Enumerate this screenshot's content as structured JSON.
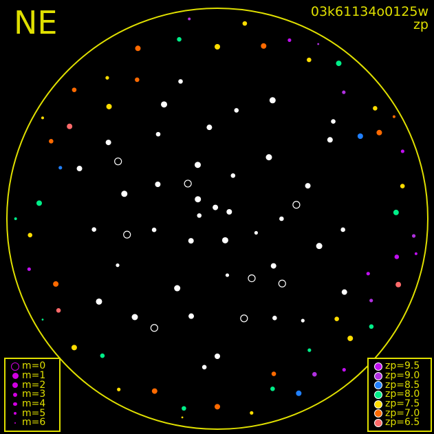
{
  "plot": {
    "direction_label": "NE",
    "frame_id": "03k61134o0125w",
    "color_key": "zp",
    "horizon_color": "#e0e000",
    "no_zp_color": "#ffffff"
  },
  "legend_magnitude": {
    "items": [
      {
        "label": "m=0",
        "m": 0
      },
      {
        "label": "m=1",
        "m": 1
      },
      {
        "label": "m=2",
        "m": 2
      },
      {
        "label": "m=3",
        "m": 3
      },
      {
        "label": "m=4",
        "m": 4
      },
      {
        "label": "m=5",
        "m": 5
      },
      {
        "label": "m=6",
        "m": 6
      }
    ]
  },
  "legend_zp": {
    "items": [
      {
        "label": "zp=9.5",
        "zp": 9.5,
        "color": "#c010f0"
      },
      {
        "label": "zp=9.0",
        "zp": 9.0,
        "color": "#b030e0"
      },
      {
        "label": "zp=8.5",
        "zp": 8.5,
        "color": "#2080ff"
      },
      {
        "label": "zp=8.0",
        "zp": 8.0,
        "color": "#00ee88"
      },
      {
        "label": "zp=7.5",
        "zp": 7.5,
        "color": "#ffdd00"
      },
      {
        "label": "zp=7.0",
        "zp": 7.0,
        "color": "#ff6a00"
      },
      {
        "label": "zp=6.5",
        "zp": 6.5,
        "color": "#ff6a6a"
      }
    ]
  },
  "chart_data": {
    "type": "scatter",
    "projection": "polar all-sky (azimuth, zenith distance in degrees)",
    "stars_az_zd_mag_zp": [
      [
        10,
        5,
        2,
        null
      ],
      [
        45,
        12,
        1,
        null
      ],
      [
        80,
        8,
        3,
        null
      ],
      [
        130,
        15,
        2,
        null
      ],
      [
        200,
        10,
        1,
        null
      ],
      [
        250,
        18,
        4,
        null
      ],
      [
        300,
        6,
        2,
        null
      ],
      [
        340,
        20,
        3,
        null
      ],
      [
        20,
        25,
        1,
        null
      ],
      [
        60,
        30,
        2,
        null
      ],
      [
        100,
        28,
        3,
        null
      ],
      [
        150,
        35,
        1,
        null
      ],
      [
        190,
        25,
        4,
        null
      ],
      [
        230,
        32,
        2,
        null
      ],
      [
        270,
        28,
        3,
        null
      ],
      [
        320,
        35,
        1,
        null
      ],
      [
        5,
        40,
        2,
        null
      ],
      [
        35,
        45,
        3,
        null
      ],
      [
        75,
        42,
        1,
        null
      ],
      [
        115,
        48,
        4,
        null
      ],
      [
        165,
        44,
        2,
        null
      ],
      [
        210,
        50,
        3,
        null
      ],
      [
        255,
        46,
        1,
        null
      ],
      [
        290,
        42,
        2,
        null
      ],
      [
        350,
        48,
        3,
        null
      ],
      [
        25,
        55,
        1,
        null
      ],
      [
        55,
        58,
        2,
        null
      ],
      [
        95,
        54,
        3,
        null
      ],
      [
        140,
        56,
        1,
        null
      ],
      [
        180,
        60,
        2,
        null
      ],
      [
        220,
        58,
        4,
        null
      ],
      [
        265,
        55,
        3,
        null
      ],
      [
        305,
        60,
        2,
        null
      ],
      [
        335,
        57,
        1,
        null
      ],
      [
        15,
        62,
        3,
        null
      ],
      [
        70,
        64,
        2,
        null
      ],
      [
        125,
        63,
        1,
        null
      ],
      [
        175,
        65,
        3,
        null
      ],
      [
        240,
        64,
        2,
        null
      ],
      [
        310,
        66,
        3,
        null
      ],
      [
        210,
        30,
        0,
        null
      ],
      [
        225,
        40,
        0,
        null
      ],
      [
        195,
        45,
        0,
        null
      ],
      [
        40,
        20,
        0,
        null
      ],
      [
        150,
        55,
        0,
        null
      ],
      [
        60,
        50,
        0,
        null
      ],
      [
        100,
        40,
        0,
        null
      ],
      [
        280,
        35,
        0,
        null
      ],
      [
        0,
        75,
        2,
        7.5
      ],
      [
        12,
        80,
        3,
        8.0
      ],
      [
        25,
        82,
        2,
        7.0
      ],
      [
        38,
        78,
        4,
        7.5
      ],
      [
        48,
        84,
        3,
        7.0
      ],
      [
        58,
        76,
        2,
        6.5
      ],
      [
        65,
        80,
        3,
        7.0
      ],
      [
        72,
        72,
        4,
        8.5
      ],
      [
        85,
        78,
        2,
        8.0
      ],
      [
        95,
        82,
        3,
        7.5
      ],
      [
        105,
        85,
        4,
        9.5
      ],
      [
        112,
        76,
        2,
        7.0
      ],
      [
        120,
        80,
        3,
        6.5
      ],
      [
        132,
        84,
        2,
        7.5
      ],
      [
        140,
        78,
        3,
        8.0
      ],
      [
        150,
        86,
        4,
        7.5
      ],
      [
        160,
        80,
        2,
        7.0
      ],
      [
        170,
        84,
        3,
        8.0
      ],
      [
        180,
        82,
        2,
        7.0
      ],
      [
        190,
        86,
        4,
        7.5
      ],
      [
        198,
        78,
        3,
        8.0
      ],
      [
        205,
        84,
        2,
        8.5
      ],
      [
        212,
        80,
        3,
        9.0
      ],
      [
        220,
        86,
        4,
        9.5
      ],
      [
        228,
        78,
        2,
        7.5
      ],
      [
        235,
        82,
        3,
        8.0
      ],
      [
        242,
        76,
        4,
        9.0
      ],
      [
        250,
        84,
        2,
        6.5
      ],
      [
        258,
        80,
        3,
        9.5
      ],
      [
        265,
        86,
        4,
        9.0
      ],
      [
        272,
        78,
        2,
        8.0
      ],
      [
        280,
        82,
        3,
        7.5
      ],
      [
        290,
        86,
        4,
        9.5
      ],
      [
        298,
        80,
        2,
        7.0
      ],
      [
        305,
        84,
        3,
        7.5
      ],
      [
        315,
        78,
        4,
        9.0
      ],
      [
        322,
        86,
        2,
        8.0
      ],
      [
        330,
        80,
        3,
        7.5
      ],
      [
        338,
        84,
        4,
        9.5
      ],
      [
        345,
        78,
        2,
        7.0
      ],
      [
        352,
        86,
        3,
        7.5
      ],
      [
        30,
        70,
        3,
        7.0
      ],
      [
        44,
        68,
        2,
        7.5
      ],
      [
        200,
        72,
        3,
        7.0
      ],
      [
        215,
        70,
        4,
        8.0
      ],
      [
        230,
        68,
        3,
        7.5
      ],
      [
        300,
        72,
        2,
        8.5
      ],
      [
        250,
        70,
        4,
        9.5
      ],
      [
        8,
        88,
        5,
        9.0
      ],
      [
        90,
        88,
        5,
        8.0
      ],
      [
        170,
        88,
        6,
        7.5
      ],
      [
        260,
        88,
        5,
        9.5
      ],
      [
        330,
        88,
        6,
        9.0
      ],
      [
        60,
        88,
        5,
        7.5
      ],
      [
        120,
        88,
        6,
        8.0
      ],
      [
        300,
        89,
        5,
        7.0
      ]
    ]
  }
}
